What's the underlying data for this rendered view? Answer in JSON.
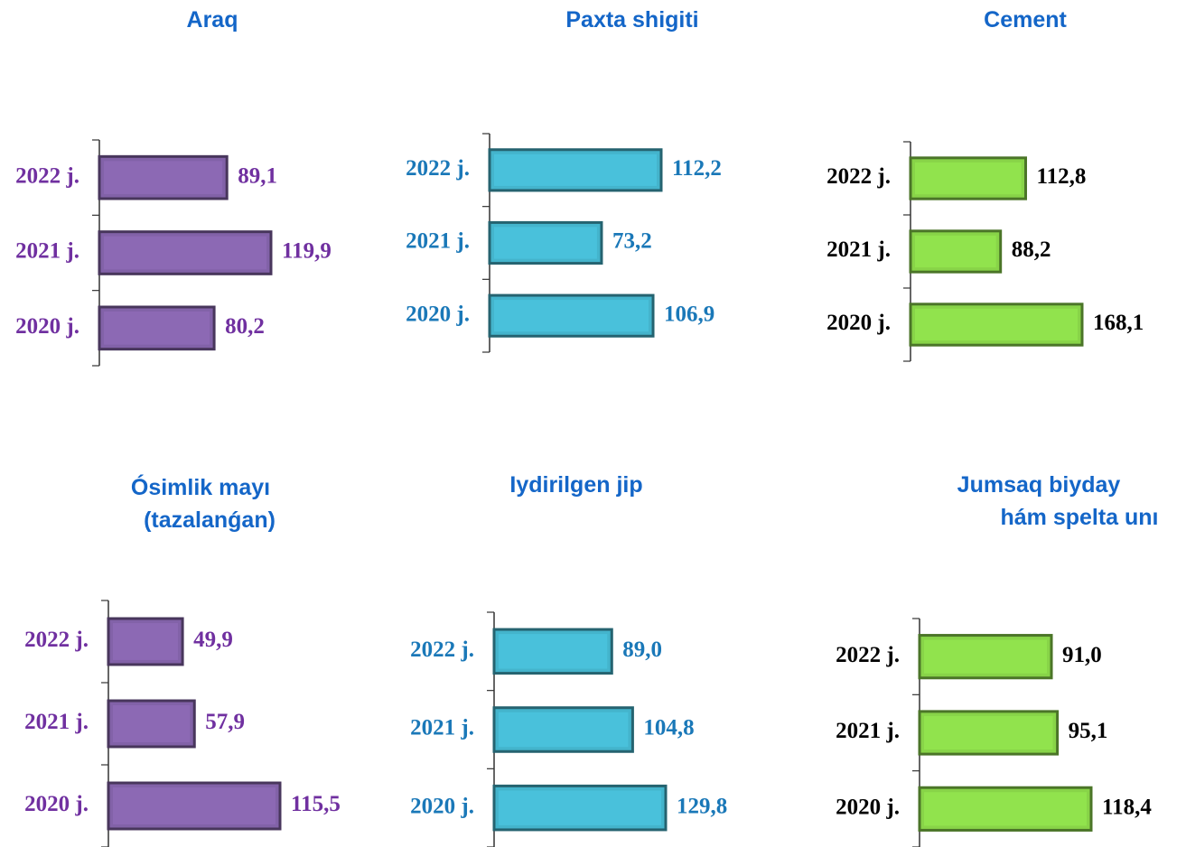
{
  "chart_data": [
    {
      "type": "bar",
      "title": [
        "Araq"
      ],
      "categories": [
        "2022 j.",
        "2021 j.",
        "2020 j."
      ],
      "values": [
        89.1,
        119.9,
        80.2
      ],
      "value_labels": [
        "89,1",
        "119,9",
        "80,2"
      ],
      "color": "#8262a8",
      "label_color": "#7030a0"
    },
    {
      "type": "bar",
      "title": [
        "Paxta shigiti"
      ],
      "categories": [
        "2022 j.",
        "2021 j.",
        "2020 j."
      ],
      "values": [
        112.2,
        73.2,
        106.9
      ],
      "value_labels": [
        "112,2",
        "73,2",
        "106,9"
      ],
      "color": "#44b4cc",
      "label_color": "#1a78b8"
    },
    {
      "type": "bar",
      "title": [
        "Cement"
      ],
      "categories": [
        "2022 j.",
        "2021 j.",
        "2020 j."
      ],
      "values": [
        112.8,
        88.2,
        168.1
      ],
      "value_labels": [
        "112,8",
        "88,2",
        "168,1"
      ],
      "color": "#88d448",
      "label_color": "#000000"
    },
    {
      "type": "bar",
      "title": [
        "Ósimlik  mayı",
        "(tazalanǵan)"
      ],
      "categories": [
        "2022 j.",
        "2021 j.",
        "2020 j."
      ],
      "values": [
        49.9,
        57.9,
        115.5
      ],
      "value_labels": [
        "49,9",
        "57,9",
        "115,5"
      ],
      "color": "#8262a8",
      "label_color": "#7030a0"
    },
    {
      "type": "bar",
      "title": [
        "Iydirilgen jip"
      ],
      "categories": [
        "2022 j.",
        "2021 j.",
        "2020 j."
      ],
      "values": [
        89.0,
        104.8,
        129.8
      ],
      "value_labels": [
        "89,0",
        "104,8",
        "129,8"
      ],
      "color": "#44b4cc",
      "label_color": "#1a78b8"
    },
    {
      "type": "bar",
      "title": [
        "Jumsaq  biyday",
        "hám  spelta unı"
      ],
      "categories": [
        "2022 j.",
        "2021 j.",
        "2020 j."
      ],
      "values": [
        91.0,
        95.1,
        118.4
      ],
      "value_labels": [
        "91,0",
        "95,1",
        "118,4"
      ],
      "color": "#88d448",
      "label_color": "#000000"
    }
  ]
}
